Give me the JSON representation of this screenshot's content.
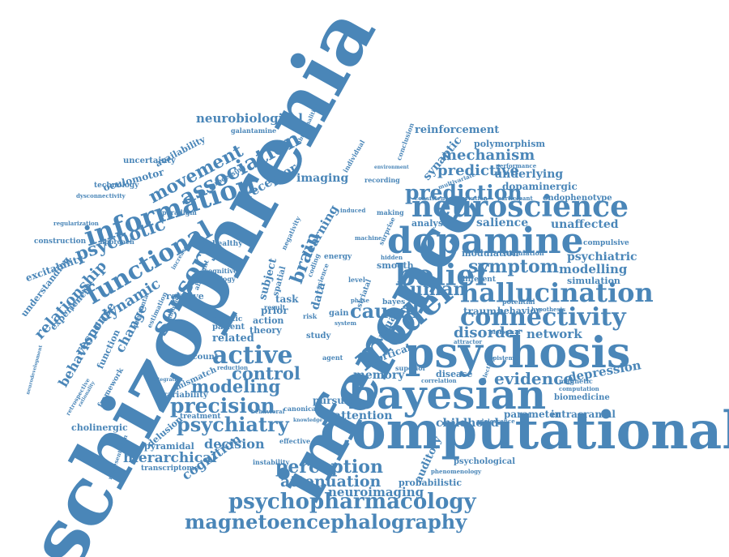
{
  "color": "#4a86b8",
  "words": {
    "schizophrenia": "schizophrenia",
    "inference": "inference",
    "computational": "computational",
    "psychosis": "psychosis",
    "bayesian": "bayesian",
    "dopamine": "dopamine",
    "neuroscience": "neuroscience",
    "hallucination": "hallucination",
    "connectivity": "connectivity",
    "psychopharmacology": "psychopharmacology",
    "magnetoencephalography": "magnetoencephalography",
    "model": "model",
    "belief": "belief",
    "information": "information",
    "functional": "functional",
    "sensory": "sensory",
    "association": "association",
    "movement": "movement",
    "psychotic": "psychotic",
    "prediction": "prediction",
    "predictive": "predictive",
    "mechanism": "mechanism",
    "symptom": "symptom",
    "active": "active",
    "precision": "precision",
    "psychiatry": "psychiatry",
    "causal": "causal",
    "perception": "perception",
    "attenuation": "attenuation",
    "neuroimaging": "neuroimaging",
    "modeling": "modeling",
    "hierarchical": "hierarchical",
    "decision": "decision",
    "cognition": "cognition",
    "frontoparietal": "frontoparietal",
    "dexamphetamine": "dexamphetamine",
    "evidence": "evidence",
    "depression": "depression",
    "disorder": "disorder",
    "network": "network",
    "modelling": "modelling",
    "psychiatric": "psychiatric",
    "simulation": "simulation",
    "trauma": "trauma",
    "behavior": "behavior",
    "neurobiological": "neurobiological",
    "reinforcement": "reinforcement",
    "polymorphism": "polymorphism",
    "underlying": "underlying",
    "dopaminergic": "dopaminergic",
    "endophenotype": "endophenotype",
    "unaffected": "unaffected",
    "compulsive": "compulsive",
    "analysis": "analysis",
    "salience": "salience",
    "human": "human",
    "control": "control",
    "relationship": "relationship",
    "behaviour": "behaviour",
    "dynamic": "dynamic",
    "change": "change",
    "response": "response",
    "receptor": "receptor",
    "imaging": "imaging",
    "learning": "learning",
    "brain": "brain",
    "synaptic": "synaptic",
    "oculomotor": "oculomotor",
    "availability": "availability",
    "uncertainty": "uncertainty",
    "technology": "technology",
    "excitability": "excitability",
    "construction": "construction",
    "understanding": "understanding",
    "experience": "experience",
    "memory": "memory",
    "pursuit": "pursuit",
    "attention": "attention",
    "childhood": "childhood",
    "parameter": "parameter",
    "intracranial": "intracranial",
    "auditory": "auditory",
    "probabilistic": "probabilistic",
    "psychological": "psychological",
    "delusion": "delusion",
    "pyramidal": "pyramidal",
    "transcriptome": "transcriptome",
    "treatment": "treatment",
    "variability": "variability",
    "mismatch": "mismatch",
    "account": "account",
    "related": "related",
    "theory": "theory",
    "action": "action",
    "prior": "prior",
    "task": "task",
    "data": "data",
    "visual": "visual",
    "cortical": "cortical",
    "disease": "disease",
    "biomedicine": "biomedicine",
    "computation": "computation",
    "magnetic": "magnetic",
    "cholinergic": "cholinergic",
    "function": "function",
    "relative": "relative",
    "estimation": "estimation",
    "healthy": "healthy",
    "smooth": "smooth",
    "modulation": "modulation",
    "different": "different",
    "potential": "potential",
    "stimulation": "stimulation",
    "energy": "energy",
    "study": "study",
    "result": "result",
    "subject": "subject",
    "spatial": "spatial",
    "patient": "patient",
    "genetic": "genetic",
    "cognitive": "cognitive",
    "biology": "biology",
    "paradigm": "paradigm",
    "processing": "processing",
    "galantamine": "galantamine",
    "abnormalities": "abnormalities",
    "conclusion": "conclusion",
    "individual": "individual",
    "recording": "recording",
    "making": "making",
    "machine": "machine",
    "gain": "gain",
    "bayes": "bayes",
    "level": "level",
    "agent": "agent",
    "hypothesis": "hypothesis",
    "participant": "participant",
    "consistent": "consistent",
    "observation": "observation",
    "performance": "performance",
    "regularization": "regularization",
    "approach": "approach",
    "increase": "increase",
    "aberrant": "aberrant",
    "prefrontal": "prefrontal",
    "inhibition": "inhibition",
    "perceptual": "perceptual",
    "framework": "framework",
    "retrospective": "retrospective",
    "reduction": "reduction",
    "instability": "instability",
    "effective": "effective",
    "canonical": "canonical",
    "superior": "superior",
    "epistemic": "epistemic",
    "biological": "biological",
    "adolescence": "adolescence",
    "phenomenology": "phenomenology",
    "selection": "selection",
    "correlation": "correlation",
    "dysconnectivity": "dysconnectivity",
    "negativity": "negativity",
    "striatal": "striatal",
    "coding": "coding",
    "science": "science",
    "risk": "risk",
    "attractor": "attractor",
    "phase": "phase",
    "system": "system",
    "behavioral": "behavioral",
    "multivariate": "multivariate",
    "environment": "environment",
    "hidden": "hidden",
    "surprise": "surprise",
    "induced": "induced",
    "neurodevelopment": "neurodevelopment",
    "representation": "representation",
    "rationality": "rationality",
    "integration": "integration",
    "knowledge": "knowledge"
  }
}
